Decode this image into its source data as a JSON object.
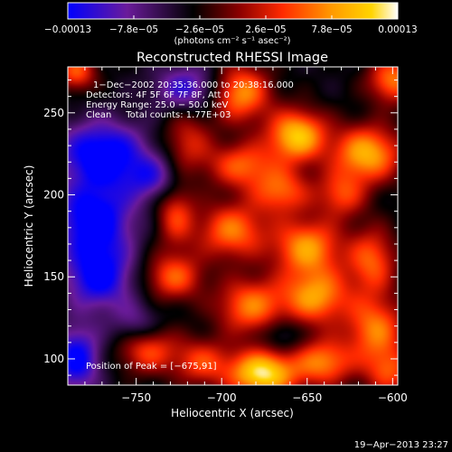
{
  "chart_data": {
    "type": "heatmap",
    "title": "Reconstructed RHESSI Image",
    "xlabel": "Heliocentric X (arcsec)",
    "ylabel": "Heliocentric Y (arcsec)",
    "xlim": [
      -790,
      -597
    ],
    "ylim": [
      84,
      278
    ],
    "x_ticks": [
      -750,
      -700,
      -650,
      -600
    ],
    "x_tick_labels": [
      "−750",
      "−700",
      "−650",
      "−600"
    ],
    "y_ticks": [
      100,
      150,
      200,
      250
    ],
    "y_tick_labels": [
      "100",
      "150",
      "200",
      "250"
    ],
    "colorbar": {
      "range": [
        -0.00013,
        0.00013
      ],
      "ticks": [
        -0.00013,
        -7.8e-05,
        -2.6e-05,
        2.6e-05,
        7.8e-05,
        0.00013
      ],
      "tick_labels": [
        "−0.00013",
        "−7.8e−05",
        "−2.6e−05",
        "2.6e−05",
        "7.8e−05",
        "0.00013"
      ],
      "unit_label": "(photons cm⁻² s⁻¹ asec⁻²)",
      "colormap": [
        "#0000ff",
        "#6a1b9a",
        "#000000",
        "#8b0000",
        "#ff2a00",
        "#ff9a00",
        "#ffd400",
        "#ffffff"
      ]
    },
    "annotations": [
      "1−Dec−2002 20:35:36.000 to 20:38:16.000",
      "Detectors: 4F 5F 6F 7F 8F, Att 0",
      "Energy Range: 25.0 − 50.0 keV",
      "Clean     Total counts: 1.77E+03"
    ],
    "peak_label": "Position of Peak = [−675,91]",
    "blobs": [
      {
        "x": -689,
        "y": 262,
        "a": 0.9,
        "sx": 12,
        "sy": 12
      },
      {
        "x": -656,
        "y": 236,
        "a": 1.1,
        "sx": 12,
        "sy": 11
      },
      {
        "x": -615,
        "y": 225,
        "a": 1.0,
        "sx": 14,
        "sy": 12
      },
      {
        "x": -600,
        "y": 270,
        "a": 0.8,
        "sx": 10,
        "sy": 10
      },
      {
        "x": -720,
        "y": 232,
        "a": 0.5,
        "sx": 10,
        "sy": 14
      },
      {
        "x": -688,
        "y": 218,
        "a": 0.7,
        "sx": 14,
        "sy": 10
      },
      {
        "x": -665,
        "y": 202,
        "a": 0.7,
        "sx": 12,
        "sy": 10
      },
      {
        "x": -630,
        "y": 200,
        "a": 0.6,
        "sx": 10,
        "sy": 10
      },
      {
        "x": -727,
        "y": 188,
        "a": 0.6,
        "sx": 8,
        "sy": 14
      },
      {
        "x": -694,
        "y": 178,
        "a": 0.8,
        "sx": 14,
        "sy": 12
      },
      {
        "x": -650,
        "y": 168,
        "a": 0.9,
        "sx": 14,
        "sy": 12
      },
      {
        "x": -612,
        "y": 160,
        "a": 0.7,
        "sx": 10,
        "sy": 14
      },
      {
        "x": -728,
        "y": 150,
        "a": 0.7,
        "sx": 12,
        "sy": 10
      },
      {
        "x": -683,
        "y": 132,
        "a": 0.8,
        "sx": 14,
        "sy": 12
      },
      {
        "x": -645,
        "y": 138,
        "a": 0.9,
        "sx": 14,
        "sy": 12
      },
      {
        "x": -610,
        "y": 118,
        "a": 0.8,
        "sx": 12,
        "sy": 14
      },
      {
        "x": -744,
        "y": 106,
        "a": 0.7,
        "sx": 12,
        "sy": 10
      },
      {
        "x": -712,
        "y": 98,
        "a": 0.6,
        "sx": 12,
        "sy": 10
      },
      {
        "x": -676,
        "y": 91,
        "a": 1.25,
        "sx": 14,
        "sy": 10
      },
      {
        "x": -640,
        "y": 98,
        "a": 0.8,
        "sx": 12,
        "sy": 10
      },
      {
        "x": -602,
        "y": 92,
        "a": 0.6,
        "sx": 10,
        "sy": 10
      },
      {
        "x": -785,
        "y": 275,
        "a": 0.7,
        "sx": 8,
        "sy": 8
      },
      {
        "x": -750,
        "y": 120,
        "a": -0.4,
        "sx": 10,
        "sy": 10
      },
      {
        "x": -770,
        "y": 225,
        "a": -0.9,
        "sx": 18,
        "sy": 14
      },
      {
        "x": -775,
        "y": 185,
        "a": -0.9,
        "sx": 16,
        "sy": 16
      },
      {
        "x": -772,
        "y": 150,
        "a": -0.8,
        "sx": 14,
        "sy": 14
      },
      {
        "x": -785,
        "y": 100,
        "a": -0.8,
        "sx": 10,
        "sy": 14
      },
      {
        "x": -740,
        "y": 210,
        "a": -0.5,
        "sx": 12,
        "sy": 10
      },
      {
        "x": -720,
        "y": 265,
        "a": -0.6,
        "sx": 14,
        "sy": 10
      },
      {
        "x": -665,
        "y": 115,
        "a": -0.3,
        "sx": 8,
        "sy": 8
      }
    ]
  },
  "footer": {
    "timestamp": "19−Apr−2013 23:27"
  }
}
